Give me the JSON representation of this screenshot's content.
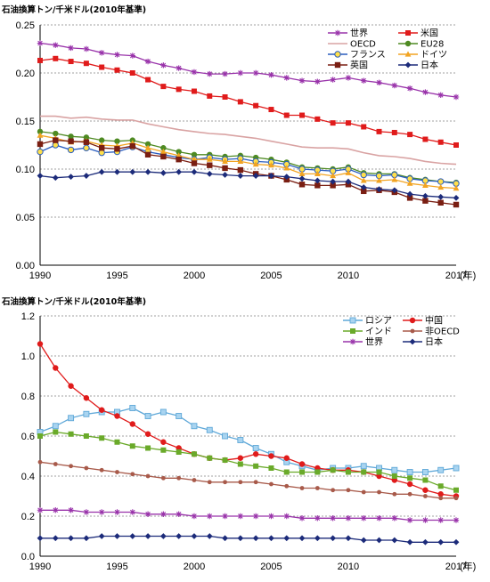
{
  "chart_data": [
    {
      "type": "line",
      "ylabel": "石油換算トン/千米ドル(2010年基準)",
      "x_unit_label": "(年)",
      "ylim": [
        0,
        0.25
      ],
      "yticks": [
        "0.00",
        "0.05",
        "0.10",
        "0.15",
        "0.20",
        "0.25"
      ],
      "xlim": [
        1990,
        2017
      ],
      "xticks": [
        "1990",
        "1995",
        "2000",
        "2005",
        "2010",
        "2017"
      ],
      "grid": "horizontal-dashed",
      "legend": "top-right",
      "series": [
        {
          "name": "世界",
          "color": "#9933aa",
          "marker": "star",
          "values": [
            0.231,
            0.229,
            0.226,
            0.225,
            0.221,
            0.219,
            0.218,
            0.212,
            0.208,
            0.205,
            0.201,
            0.199,
            0.199,
            0.2,
            0.2,
            0.198,
            0.195,
            0.192,
            0.191,
            0.193,
            0.195,
            0.192,
            0.19,
            0.187,
            0.184,
            0.18,
            0.177,
            0.175
          ]
        },
        {
          "name": "米国",
          "color": "#e01b1b",
          "marker": "square",
          "values": [
            0.213,
            0.215,
            0.212,
            0.21,
            0.206,
            0.203,
            0.2,
            0.193,
            0.186,
            0.183,
            0.181,
            0.176,
            0.175,
            0.17,
            0.166,
            0.162,
            0.156,
            0.156,
            0.152,
            0.148,
            0.148,
            0.144,
            0.139,
            0.138,
            0.136,
            0.131,
            0.128,
            0.125
          ]
        },
        {
          "name": "OECD",
          "color": "#d9a3a3",
          "marker": "none",
          "values": [
            0.155,
            0.155,
            0.153,
            0.154,
            0.152,
            0.151,
            0.151,
            0.147,
            0.144,
            0.141,
            0.139,
            0.137,
            0.136,
            0.134,
            0.132,
            0.129,
            0.126,
            0.123,
            0.122,
            0.122,
            0.121,
            0.117,
            0.114,
            0.113,
            0.111,
            0.108,
            0.106,
            0.105
          ]
        },
        {
          "name": "EU28",
          "color": "#4e8a22",
          "marker": "circle",
          "values": [
            0.139,
            0.137,
            0.134,
            0.133,
            0.13,
            0.129,
            0.13,
            0.126,
            0.122,
            0.118,
            0.115,
            0.115,
            0.113,
            0.114,
            0.112,
            0.11,
            0.107,
            0.102,
            0.101,
            0.1,
            0.102,
            0.096,
            0.095,
            0.095,
            0.091,
            0.089,
            0.087,
            0.086
          ]
        },
        {
          "name": "フランス",
          "color": "#2a5dbf",
          "marker": "circle-yellow",
          "values": [
            0.118,
            0.125,
            0.12,
            0.122,
            0.117,
            0.118,
            0.123,
            0.118,
            0.115,
            0.112,
            0.11,
            0.112,
            0.11,
            0.111,
            0.108,
            0.107,
            0.105,
            0.1,
            0.099,
            0.098,
            0.1,
            0.094,
            0.093,
            0.094,
            0.09,
            0.088,
            0.087,
            0.085
          ]
        },
        {
          "name": "ドイツ",
          "color": "#f2a422",
          "marker": "triangle",
          "values": [
            0.135,
            0.132,
            0.128,
            0.129,
            0.125,
            0.124,
            0.127,
            0.122,
            0.118,
            0.114,
            0.11,
            0.11,
            0.108,
            0.108,
            0.105,
            0.104,
            0.101,
            0.095,
            0.095,
            0.093,
            0.096,
            0.088,
            0.088,
            0.089,
            0.085,
            0.083,
            0.081,
            0.08
          ]
        },
        {
          "name": "英国",
          "color": "#7a1e12",
          "marker": "square-dark",
          "values": [
            0.126,
            0.13,
            0.129,
            0.128,
            0.122,
            0.121,
            0.124,
            0.115,
            0.113,
            0.11,
            0.106,
            0.104,
            0.101,
            0.099,
            0.095,
            0.093,
            0.089,
            0.084,
            0.083,
            0.083,
            0.084,
            0.077,
            0.078,
            0.076,
            0.07,
            0.067,
            0.065,
            0.063
          ]
        },
        {
          "name": "日本",
          "color": "#1c2b7a",
          "marker": "diamond",
          "values": [
            0.093,
            0.091,
            0.092,
            0.093,
            0.097,
            0.097,
            0.097,
            0.097,
            0.096,
            0.097,
            0.097,
            0.095,
            0.094,
            0.093,
            0.093,
            0.093,
            0.092,
            0.09,
            0.088,
            0.087,
            0.087,
            0.081,
            0.079,
            0.078,
            0.074,
            0.072,
            0.071,
            0.07
          ]
        }
      ]
    },
    {
      "type": "line",
      "ylabel": "石油換算トン/千米ドル(2010年基準)",
      "x_unit_label": "(年)",
      "ylim": [
        0,
        1.2
      ],
      "yticks": [
        "0.0",
        "0.2",
        "0.4",
        "0.6",
        "0.8",
        "1.0",
        "1.2"
      ],
      "xlim": [
        1990,
        2017
      ],
      "xticks": [
        "1990",
        "1995",
        "2000",
        "2005",
        "2010",
        "2017"
      ],
      "grid": "horizontal-dashed",
      "legend": "top-right",
      "series": [
        {
          "name": "ロシア",
          "color": "#5fa8d8",
          "marker": "square-light",
          "values": [
            0.62,
            0.65,
            0.69,
            0.71,
            0.72,
            0.72,
            0.74,
            0.7,
            0.72,
            0.7,
            0.65,
            0.63,
            0.6,
            0.58,
            0.54,
            0.51,
            0.47,
            0.45,
            0.43,
            0.44,
            0.44,
            0.45,
            0.44,
            0.43,
            0.42,
            0.42,
            0.43,
            0.44
          ]
        },
        {
          "name": "中国",
          "color": "#e01b1b",
          "marker": "circle",
          "values": [
            1.06,
            0.94,
            0.85,
            0.79,
            0.73,
            0.7,
            0.66,
            0.61,
            0.57,
            0.54,
            0.51,
            0.49,
            0.48,
            0.49,
            0.51,
            0.5,
            0.49,
            0.46,
            0.44,
            0.43,
            0.43,
            0.42,
            0.4,
            0.38,
            0.36,
            0.33,
            0.31,
            0.3
          ]
        },
        {
          "name": "インド",
          "color": "#6aaa2a",
          "marker": "square",
          "values": [
            0.6,
            0.62,
            0.61,
            0.6,
            0.59,
            0.57,
            0.55,
            0.54,
            0.53,
            0.52,
            0.51,
            0.49,
            0.48,
            0.46,
            0.45,
            0.44,
            0.42,
            0.42,
            0.42,
            0.43,
            0.42,
            0.42,
            0.42,
            0.4,
            0.39,
            0.38,
            0.35,
            0.33
          ]
        },
        {
          "name": "非OECD",
          "color": "#a85a4a",
          "marker": "circle-small",
          "values": [
            0.47,
            0.46,
            0.45,
            0.44,
            0.43,
            0.42,
            0.41,
            0.4,
            0.39,
            0.39,
            0.38,
            0.37,
            0.37,
            0.37,
            0.37,
            0.36,
            0.35,
            0.34,
            0.34,
            0.33,
            0.33,
            0.32,
            0.32,
            0.31,
            0.31,
            0.3,
            0.29,
            0.29
          ]
        },
        {
          "name": "世界",
          "color": "#9933aa",
          "marker": "star",
          "values": [
            0.23,
            0.23,
            0.23,
            0.22,
            0.22,
            0.22,
            0.22,
            0.21,
            0.21,
            0.21,
            0.2,
            0.2,
            0.2,
            0.2,
            0.2,
            0.2,
            0.2,
            0.19,
            0.19,
            0.19,
            0.19,
            0.19,
            0.19,
            0.19,
            0.18,
            0.18,
            0.18,
            0.18
          ]
        },
        {
          "name": "日本",
          "color": "#1c2b7a",
          "marker": "diamond",
          "values": [
            0.09,
            0.09,
            0.09,
            0.09,
            0.1,
            0.1,
            0.1,
            0.1,
            0.1,
            0.1,
            0.1,
            0.1,
            0.09,
            0.09,
            0.09,
            0.09,
            0.09,
            0.09,
            0.09,
            0.09,
            0.09,
            0.08,
            0.08,
            0.08,
            0.07,
            0.07,
            0.07,
            0.07
          ]
        }
      ]
    }
  ]
}
